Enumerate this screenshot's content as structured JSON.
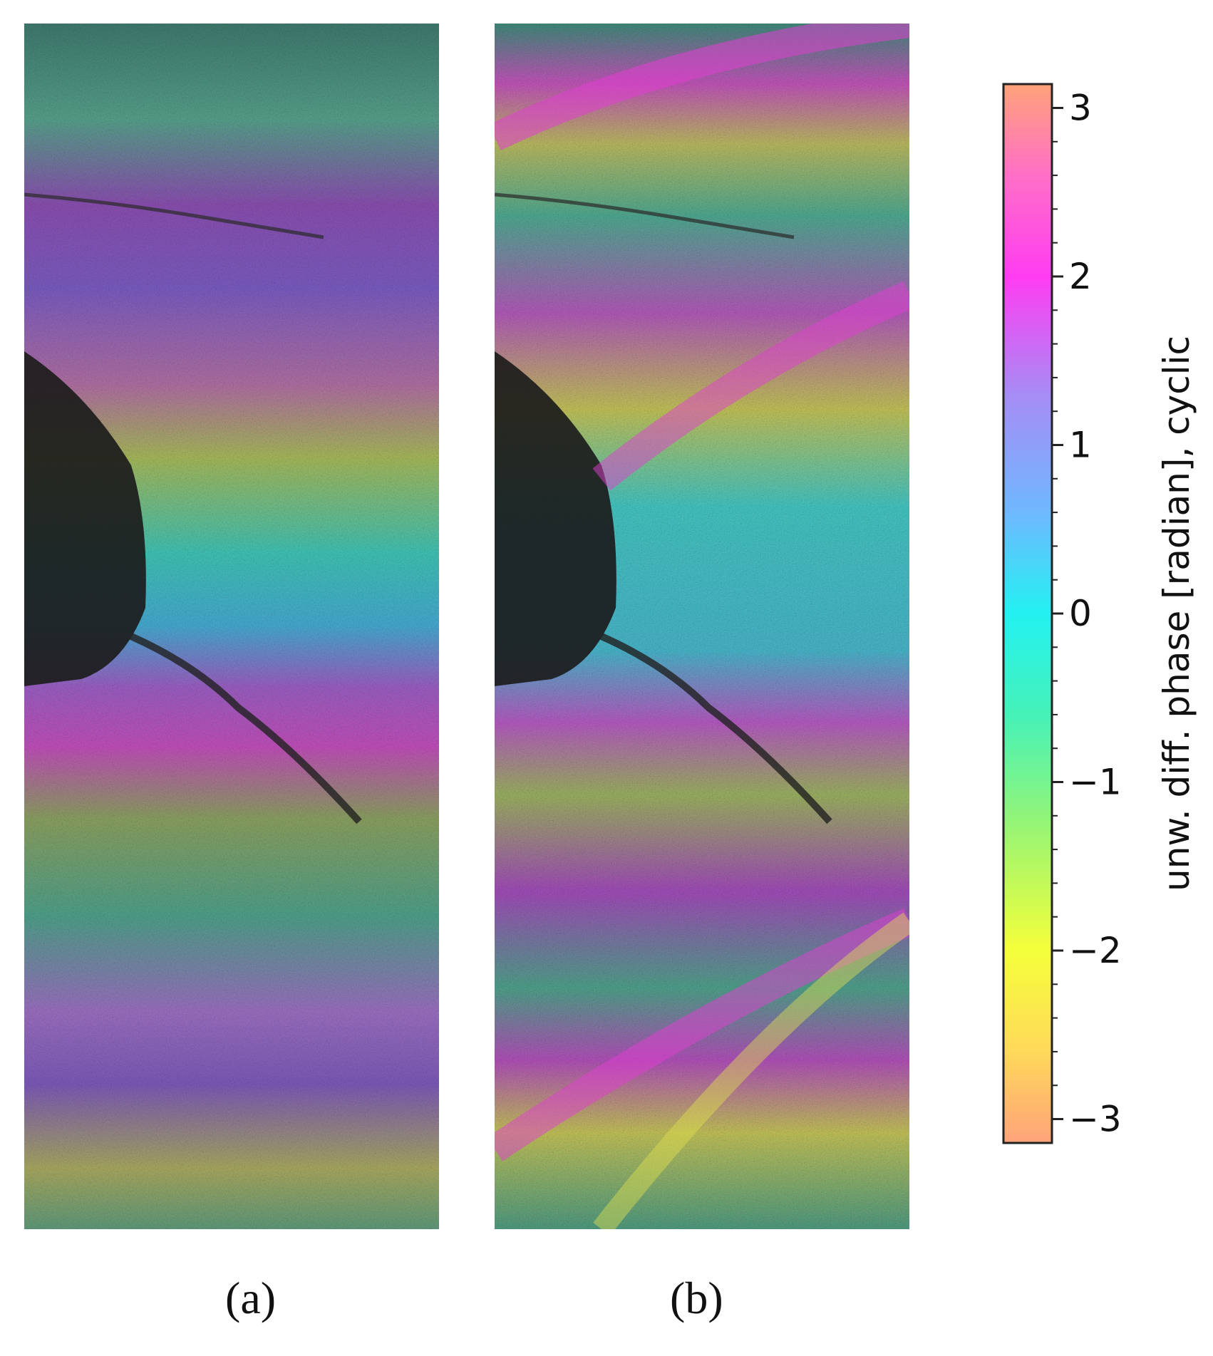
{
  "figure": {
    "panels": [
      {
        "id": "a",
        "label": "(a)"
      },
      {
        "id": "b",
        "label": "(b)"
      }
    ]
  },
  "colorbar": {
    "label": "unw. diff. phase [radian], cyclic",
    "range": [
      -3.14159,
      3.14159
    ],
    "ticks": [
      {
        "value": 3,
        "text": "3"
      },
      {
        "value": 2,
        "text": "2"
      },
      {
        "value": 1,
        "text": "1"
      },
      {
        "value": 0,
        "text": "0"
      },
      {
        "value": -1,
        "text": "−1"
      },
      {
        "value": -2,
        "text": "−2"
      },
      {
        "value": -3,
        "text": "−3"
      }
    ],
    "colormap_stops": [
      {
        "value": -3.14159,
        "color": "#ffa37a"
      },
      {
        "value": -2.6,
        "color": "#ffd95a"
      },
      {
        "value": -2.0,
        "color": "#f5ff3a"
      },
      {
        "value": -1.3,
        "color": "#9cf571"
      },
      {
        "value": -0.6,
        "color": "#45f2b8"
      },
      {
        "value": 0.0,
        "color": "#23f1f1"
      },
      {
        "value": 0.6,
        "color": "#6fb8ff"
      },
      {
        "value": 1.3,
        "color": "#a68cf5"
      },
      {
        "value": 2.0,
        "color": "#ff3cf2"
      },
      {
        "value": 2.6,
        "color": "#ff6fc6"
      },
      {
        "value": 3.14159,
        "color": "#ffa37a"
      }
    ]
  }
}
